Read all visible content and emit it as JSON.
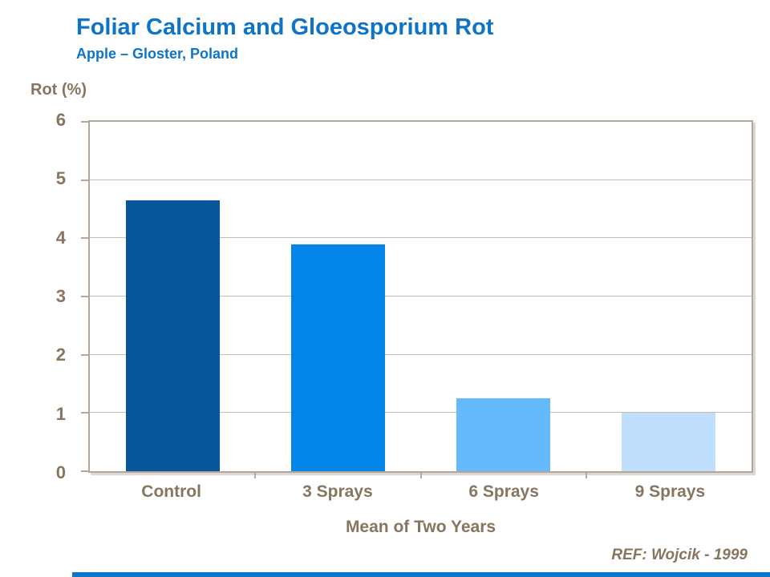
{
  "slide": {
    "footer": {
      "ref_label": "REF: Wojcik - 1999"
    }
  },
  "colors": {
    "title_blue": "#0e74c8",
    "label_taupe": "#87755e",
    "axis_line": "#b2a79a",
    "gridline": "#c6bcb0",
    "footer_bar": "#0d76ca"
  },
  "chart_data": {
    "type": "bar",
    "title": "Foliar Calcium and Gloeosporium Rot",
    "subtitle": "Apple – Gloster, Poland",
    "ylabel": "Rot (%)",
    "xlabel": "Mean of Two Years",
    "categories": [
      "Control",
      "3 Sprays",
      "6 Sprays",
      "9 Sprays"
    ],
    "values": [
      4.65,
      3.9,
      1.25,
      1.0
    ],
    "bar_colors": [
      "#07559a",
      "#0284e8",
      "#65bafc",
      "#c0dffd"
    ],
    "ylim": [
      0,
      6
    ],
    "yticks": [
      0,
      1,
      2,
      3,
      4,
      5,
      6
    ],
    "grid": "horizontal",
    "legend_position": "none"
  }
}
